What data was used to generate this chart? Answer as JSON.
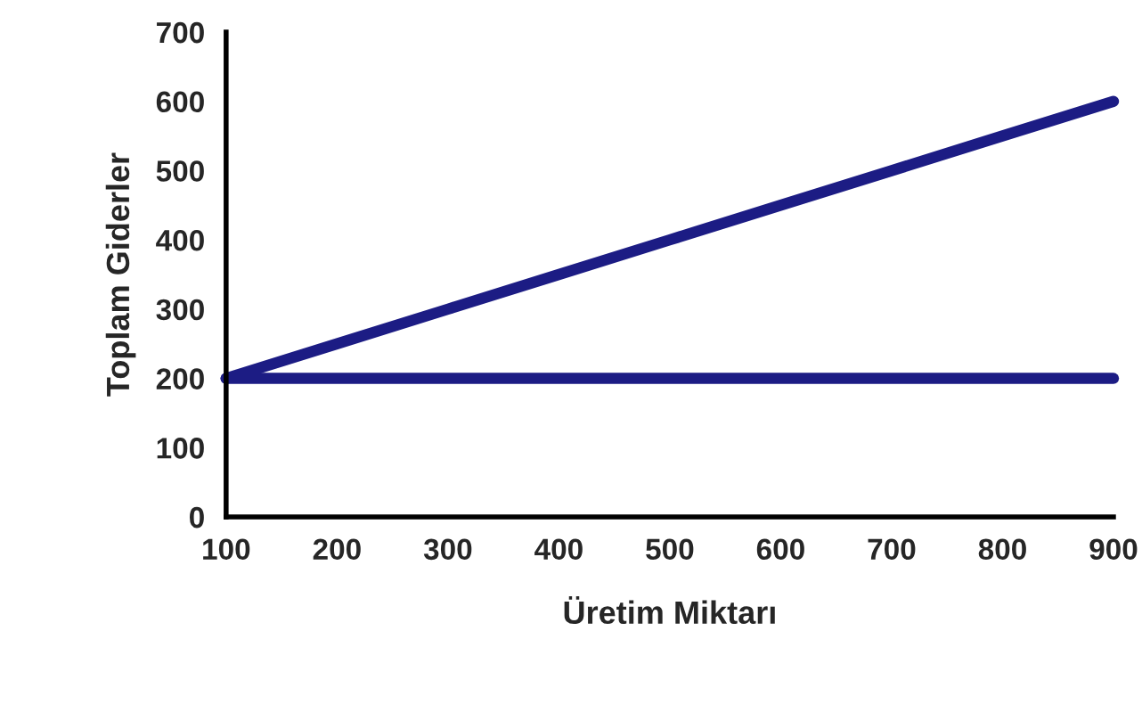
{
  "chart_data": {
    "type": "line",
    "xlabel": "Üretim Miktarı",
    "ylabel": "Toplam Giderler",
    "x": [
      100,
      200,
      300,
      400,
      500,
      600,
      700,
      800,
      900
    ],
    "series": [
      {
        "color": "#1c1c84",
        "values": [
          200,
          250,
          300,
          350,
          400,
          450,
          500,
          550,
          600
        ]
      },
      {
        "color": "#1c1c84",
        "values": [
          200,
          200,
          200,
          200,
          200,
          200,
          200,
          200,
          200
        ]
      }
    ],
    "xlim": [
      100,
      900
    ],
    "xticks": [
      100,
      200,
      300,
      400,
      500,
      600,
      700,
      800,
      900
    ],
    "ylim": [
      0,
      700
    ],
    "yticks": [
      0,
      100,
      200,
      300,
      400,
      500,
      600,
      700
    ],
    "grid": false,
    "legend": false,
    "line_style": "solid",
    "marker": "none"
  }
}
